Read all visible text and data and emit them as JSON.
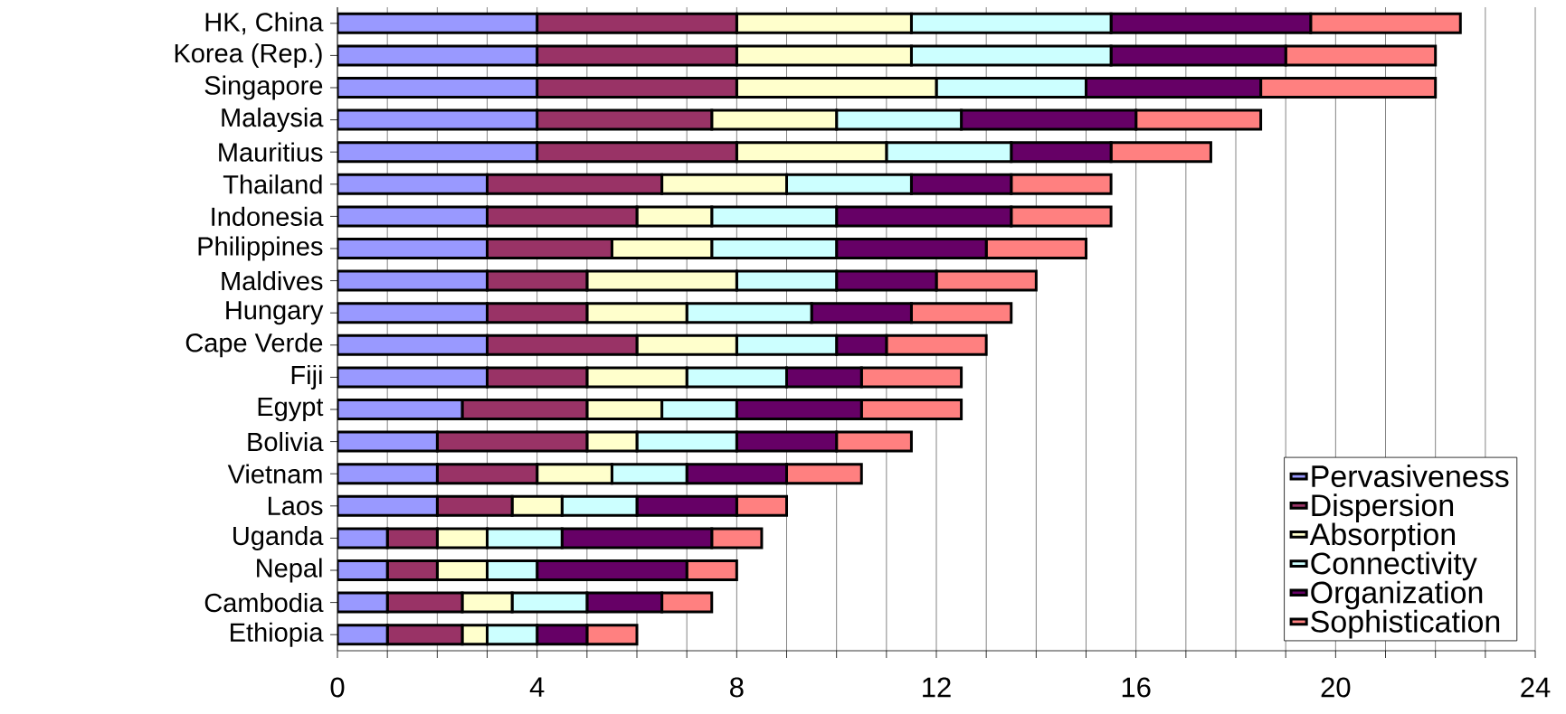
{
  "chart_data": {
    "type": "bar",
    "orientation": "horizontal",
    "stacked": true,
    "categories": [
      "HK, China",
      "Korea (Rep.)",
      "Singapore",
      "Malaysia",
      "Mauritius",
      "Thailand",
      "Indonesia",
      "Philippines",
      "Maldives",
      "Hungary",
      "Cape Verde",
      "Fiji",
      "Egypt",
      "Bolivia",
      "Vietnam",
      "Laos",
      "Uganda",
      "Nepal",
      "Cambodia",
      "Ethiopia"
    ],
    "series": [
      {
        "name": "Pervasiveness",
        "color": "#9999ff",
        "values": [
          4,
          4,
          4,
          4,
          4,
          3,
          3,
          3,
          3,
          3,
          3,
          3,
          2.5,
          2,
          2,
          2,
          1,
          1,
          1,
          1
        ]
      },
      {
        "name": "Dispersion",
        "color": "#993366",
        "values": [
          4,
          4,
          4,
          3.5,
          4,
          3.5,
          3,
          2.5,
          2,
          2,
          3,
          2,
          2.5,
          3,
          2,
          1.5,
          1,
          1,
          1.5,
          1.5
        ]
      },
      {
        "name": "Absorption",
        "color": "#ffffcc",
        "values": [
          3.5,
          3.5,
          4,
          2.5,
          3,
          2.5,
          1.5,
          2,
          3,
          2,
          2,
          2,
          1.5,
          1,
          1.5,
          1,
          1,
          1,
          1,
          0.5
        ]
      },
      {
        "name": "Connectivity",
        "color": "#ccffff",
        "values": [
          4,
          4,
          3,
          2.5,
          2.5,
          2.5,
          2.5,
          2.5,
          2,
          2.5,
          2,
          2,
          1.5,
          2,
          1.5,
          1.5,
          1.5,
          1,
          1.5,
          1
        ]
      },
      {
        "name": "Organization",
        "color": "#660066",
        "values": [
          4,
          3.5,
          3.5,
          3.5,
          2,
          2,
          3.5,
          3,
          2,
          2,
          1,
          1.5,
          2.5,
          2,
          2,
          2,
          3,
          3,
          1.5,
          1
        ]
      },
      {
        "name": "Sophistication",
        "color": "#ff8080",
        "values": [
          3,
          3,
          3.5,
          2.5,
          2,
          2,
          2,
          2,
          2,
          2,
          2,
          2,
          2,
          1.5,
          1.5,
          1,
          1,
          1,
          1,
          1
        ]
      }
    ],
    "xlim": [
      0,
      24
    ],
    "xticks": [
      0,
      {
        "value": 1,
        "label": null
      },
      {
        "value": 2,
        "label": null
      },
      {
        "value": 3,
        "label": null
      },
      4,
      {
        "value": 5,
        "label": null
      },
      {
        "value": 6,
        "label": null
      },
      {
        "value": 7,
        "label": null
      },
      8,
      {
        "value": 9,
        "label": null
      },
      {
        "value": 10,
        "label": null
      },
      {
        "value": 11,
        "label": null
      },
      12,
      {
        "value": 13,
        "label": null
      },
      {
        "value": 14,
        "label": null
      },
      {
        "value": 15,
        "label": null
      },
      16,
      {
        "value": 17,
        "label": null
      },
      {
        "value": 18,
        "label": null
      },
      {
        "value": 19,
        "label": null
      },
      20,
      {
        "value": 21,
        "label": null
      },
      {
        "value": 22,
        "label": null
      },
      {
        "value": 23,
        "label": null
      },
      24
    ],
    "grid": "x",
    "legend": "bottom right"
  }
}
